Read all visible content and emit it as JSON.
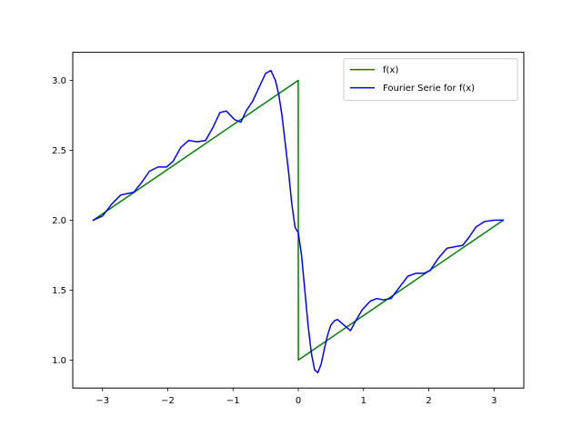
{
  "chart_data": {
    "type": "line",
    "title": "",
    "xlabel": "",
    "ylabel": "",
    "xlim": [
      -3.4558,
      3.4558
    ],
    "ylim": [
      0.8,
      3.2
    ],
    "xticks": [
      -3,
      -2,
      -1,
      0,
      1,
      2,
      3
    ],
    "xtick_labels": [
      "−3",
      "−2",
      "−1",
      "0",
      "1",
      "2",
      "3"
    ],
    "yticks": [
      1.0,
      1.5,
      2.0,
      2.5,
      3.0
    ],
    "ytick_labels": [
      "1.0",
      "1.5",
      "2.0",
      "2.5",
      "3.0"
    ],
    "grid": false,
    "legend_position": "upper right",
    "series": [
      {
        "name": "f(x)",
        "color": "#008000",
        "x": [
          -3.1416,
          -0.001,
          0.001,
          3.1416
        ],
        "y": [
          2.0,
          2.9997,
          1.0003,
          2.0
        ]
      },
      {
        "name": "Fourier Serie for f(x)",
        "color": "#0000ff",
        "x": [
          -3.14,
          -3.0,
          -2.85,
          -2.72,
          -2.62,
          -2.52,
          -2.4,
          -2.28,
          -2.15,
          -2.02,
          -1.92,
          -1.8,
          -1.68,
          -1.55,
          -1.42,
          -1.3,
          -1.2,
          -1.1,
          -0.98,
          -0.88,
          -0.8,
          -0.7,
          -0.6,
          -0.5,
          -0.42,
          -0.35,
          -0.3,
          -0.25,
          -0.2,
          -0.15,
          -0.1,
          -0.05,
          0.0,
          0.05,
          0.1,
          0.15,
          0.2,
          0.25,
          0.3,
          0.35,
          0.4,
          0.45,
          0.5,
          0.55,
          0.6,
          0.7,
          0.8,
          0.88,
          0.98,
          1.1,
          1.2,
          1.3,
          1.42,
          1.55,
          1.68,
          1.8,
          1.92,
          2.02,
          2.15,
          2.28,
          2.4,
          2.52,
          2.62,
          2.72,
          2.85,
          3.0,
          3.14
        ],
        "y": [
          2.0,
          2.03,
          2.12,
          2.18,
          2.19,
          2.2,
          2.27,
          2.35,
          2.38,
          2.38,
          2.42,
          2.52,
          2.57,
          2.56,
          2.57,
          2.67,
          2.77,
          2.78,
          2.72,
          2.7,
          2.78,
          2.85,
          2.95,
          3.05,
          3.07,
          3.0,
          2.9,
          2.75,
          2.55,
          2.35,
          2.12,
          1.95,
          1.91,
          1.75,
          1.5,
          1.25,
          1.05,
          0.93,
          0.91,
          0.97,
          1.08,
          1.18,
          1.25,
          1.28,
          1.29,
          1.25,
          1.21,
          1.28,
          1.36,
          1.42,
          1.44,
          1.43,
          1.44,
          1.52,
          1.6,
          1.62,
          1.62,
          1.64,
          1.73,
          1.8,
          1.81,
          1.82,
          1.88,
          1.95,
          1.99,
          2.0,
          2.0
        ]
      }
    ]
  }
}
